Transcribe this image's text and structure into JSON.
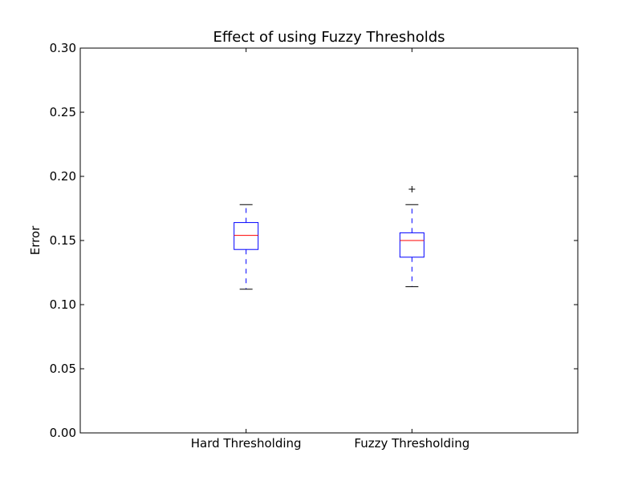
{
  "chart_data": {
    "type": "box",
    "title": "Effect of using Fuzzy Thresholds",
    "xlabel": "",
    "ylabel": "Error",
    "ylim": [
      0.0,
      0.3
    ],
    "yticks": [
      "0.00",
      "0.05",
      "0.10",
      "0.15",
      "0.20",
      "0.25",
      "0.30"
    ],
    "categories": [
      "Hard Thresholding",
      "Fuzzy Thresholding"
    ],
    "boxes": [
      {
        "whisker_low": 0.112,
        "q1": 0.143,
        "median": 0.154,
        "q3": 0.164,
        "whisker_high": 0.178,
        "outliers": []
      },
      {
        "whisker_low": 0.114,
        "q1": 0.137,
        "median": 0.15,
        "q3": 0.156,
        "whisker_high": 0.178,
        "outliers": [
          0.19
        ]
      }
    ],
    "grid": false,
    "colors": {
      "box": "#0000ff",
      "median": "#ff0000",
      "cap": "#000000",
      "outlier": "#000000"
    }
  }
}
